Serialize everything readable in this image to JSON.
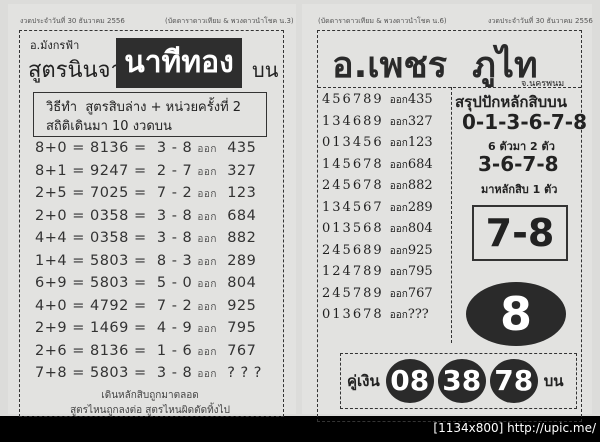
{
  "left": {
    "header_date": "งวดประจำวันที่ 30 ธันวาคม 2556",
    "header_source": "(บัดดาราดาวเทียม & พวงดาวนำโชค น.3)",
    "author": "อ.มังกรฟ้า",
    "title_prefix": "สูตรนินจา",
    "title_main": "นาทีทอง",
    "title_suffix": "บน",
    "method_line1": "วิธีทำ  สูตรสิบล่าง + หน่วยครั้งที่ 2",
    "method_line2": "สถิติเดินมา 10 งวดบน",
    "rows": [
      {
        "f": "8+0",
        "n": "8136",
        "p": "3 - 8",
        "o": "ออก",
        "r": "435"
      },
      {
        "f": "8+1",
        "n": "9247",
        "p": "2 - 7",
        "o": "ออก",
        "r": "327"
      },
      {
        "f": "2+5",
        "n": "7025",
        "p": "7 - 2",
        "o": "ออก",
        "r": "123"
      },
      {
        "f": "2+0",
        "n": "0358",
        "p": "3 - 8",
        "o": "ออก",
        "r": "684"
      },
      {
        "f": "4+4",
        "n": "0358",
        "p": "3 - 8",
        "o": "ออก",
        "r": "882"
      },
      {
        "f": "1+4",
        "n": "5803",
        "p": "8 - 3",
        "o": "ออก",
        "r": "289"
      },
      {
        "f": "6+9",
        "n": "5803",
        "p": "5 - 0",
        "o": "ออก",
        "r": "804"
      },
      {
        "f": "4+0",
        "n": "4792",
        "p": "7 - 2",
        "o": "ออก",
        "r": "925"
      },
      {
        "f": "2+9",
        "n": "1469",
        "p": "4 - 9",
        "o": "ออก",
        "r": "795"
      },
      {
        "f": "2+6",
        "n": "8136",
        "p": "1 - 6",
        "o": "ออก",
        "r": "767"
      },
      {
        "f": "7+8",
        "n": "5803",
        "p": "3 - 8",
        "o": "ออก",
        "r": "? ? ?"
      }
    ],
    "footer1": "เดินหลักสิบถูกมาตลอด",
    "footer2": "สูตรไหนถูกลงต่อ สูตรไหนผิดตัดทิ้งไป"
  },
  "right": {
    "header_source": "(บัดดาราดาวเทียม & พวงดาวนำโชค น.6)",
    "header_date": "งวดประจำวันที่ 30 ธันวาคม 2556",
    "title": "อ.เพชร  ภูไท",
    "province": "จ.นครพนม",
    "rows": [
      {
        "n": "456789",
        "o": "ออก",
        "r": "435"
      },
      {
        "n": "134689",
        "o": "ออก",
        "r": "327"
      },
      {
        "n": "013456",
        "o": "ออก",
        "r": "123"
      },
      {
        "n": "145678",
        "o": "ออก",
        "r": "684"
      },
      {
        "n": "245678",
        "o": "ออก",
        "r": "882"
      },
      {
        "n": "134567",
        "o": "ออก",
        "r": "289"
      },
      {
        "n": "013568",
        "o": "ออก",
        "r": "804"
      },
      {
        "n": "245689",
        "o": "ออก",
        "r": "925"
      },
      {
        "n": "124789",
        "o": "ออก",
        "r": "795"
      },
      {
        "n": "245789",
        "o": "ออก",
        "r": "767"
      },
      {
        "n": "013678",
        "o": "ออก",
        "r": "???"
      }
    ],
    "summary_title": "สรุปปักหลักสิบบน",
    "six_digits": "0-1-3-6-7-8",
    "six_note": "6 ตัวมา 2 ตัว",
    "four_digits": "3-6-7-8",
    "four_note": "มาหลักสิบ 1 ตัว",
    "pair": "7-8",
    "single": "8",
    "money_label": "คู่เงิน",
    "money_pairs": [
      "08",
      "38",
      "78"
    ],
    "money_suffix": "บน"
  },
  "watermark": "[1134x800] http://upic.me/"
}
